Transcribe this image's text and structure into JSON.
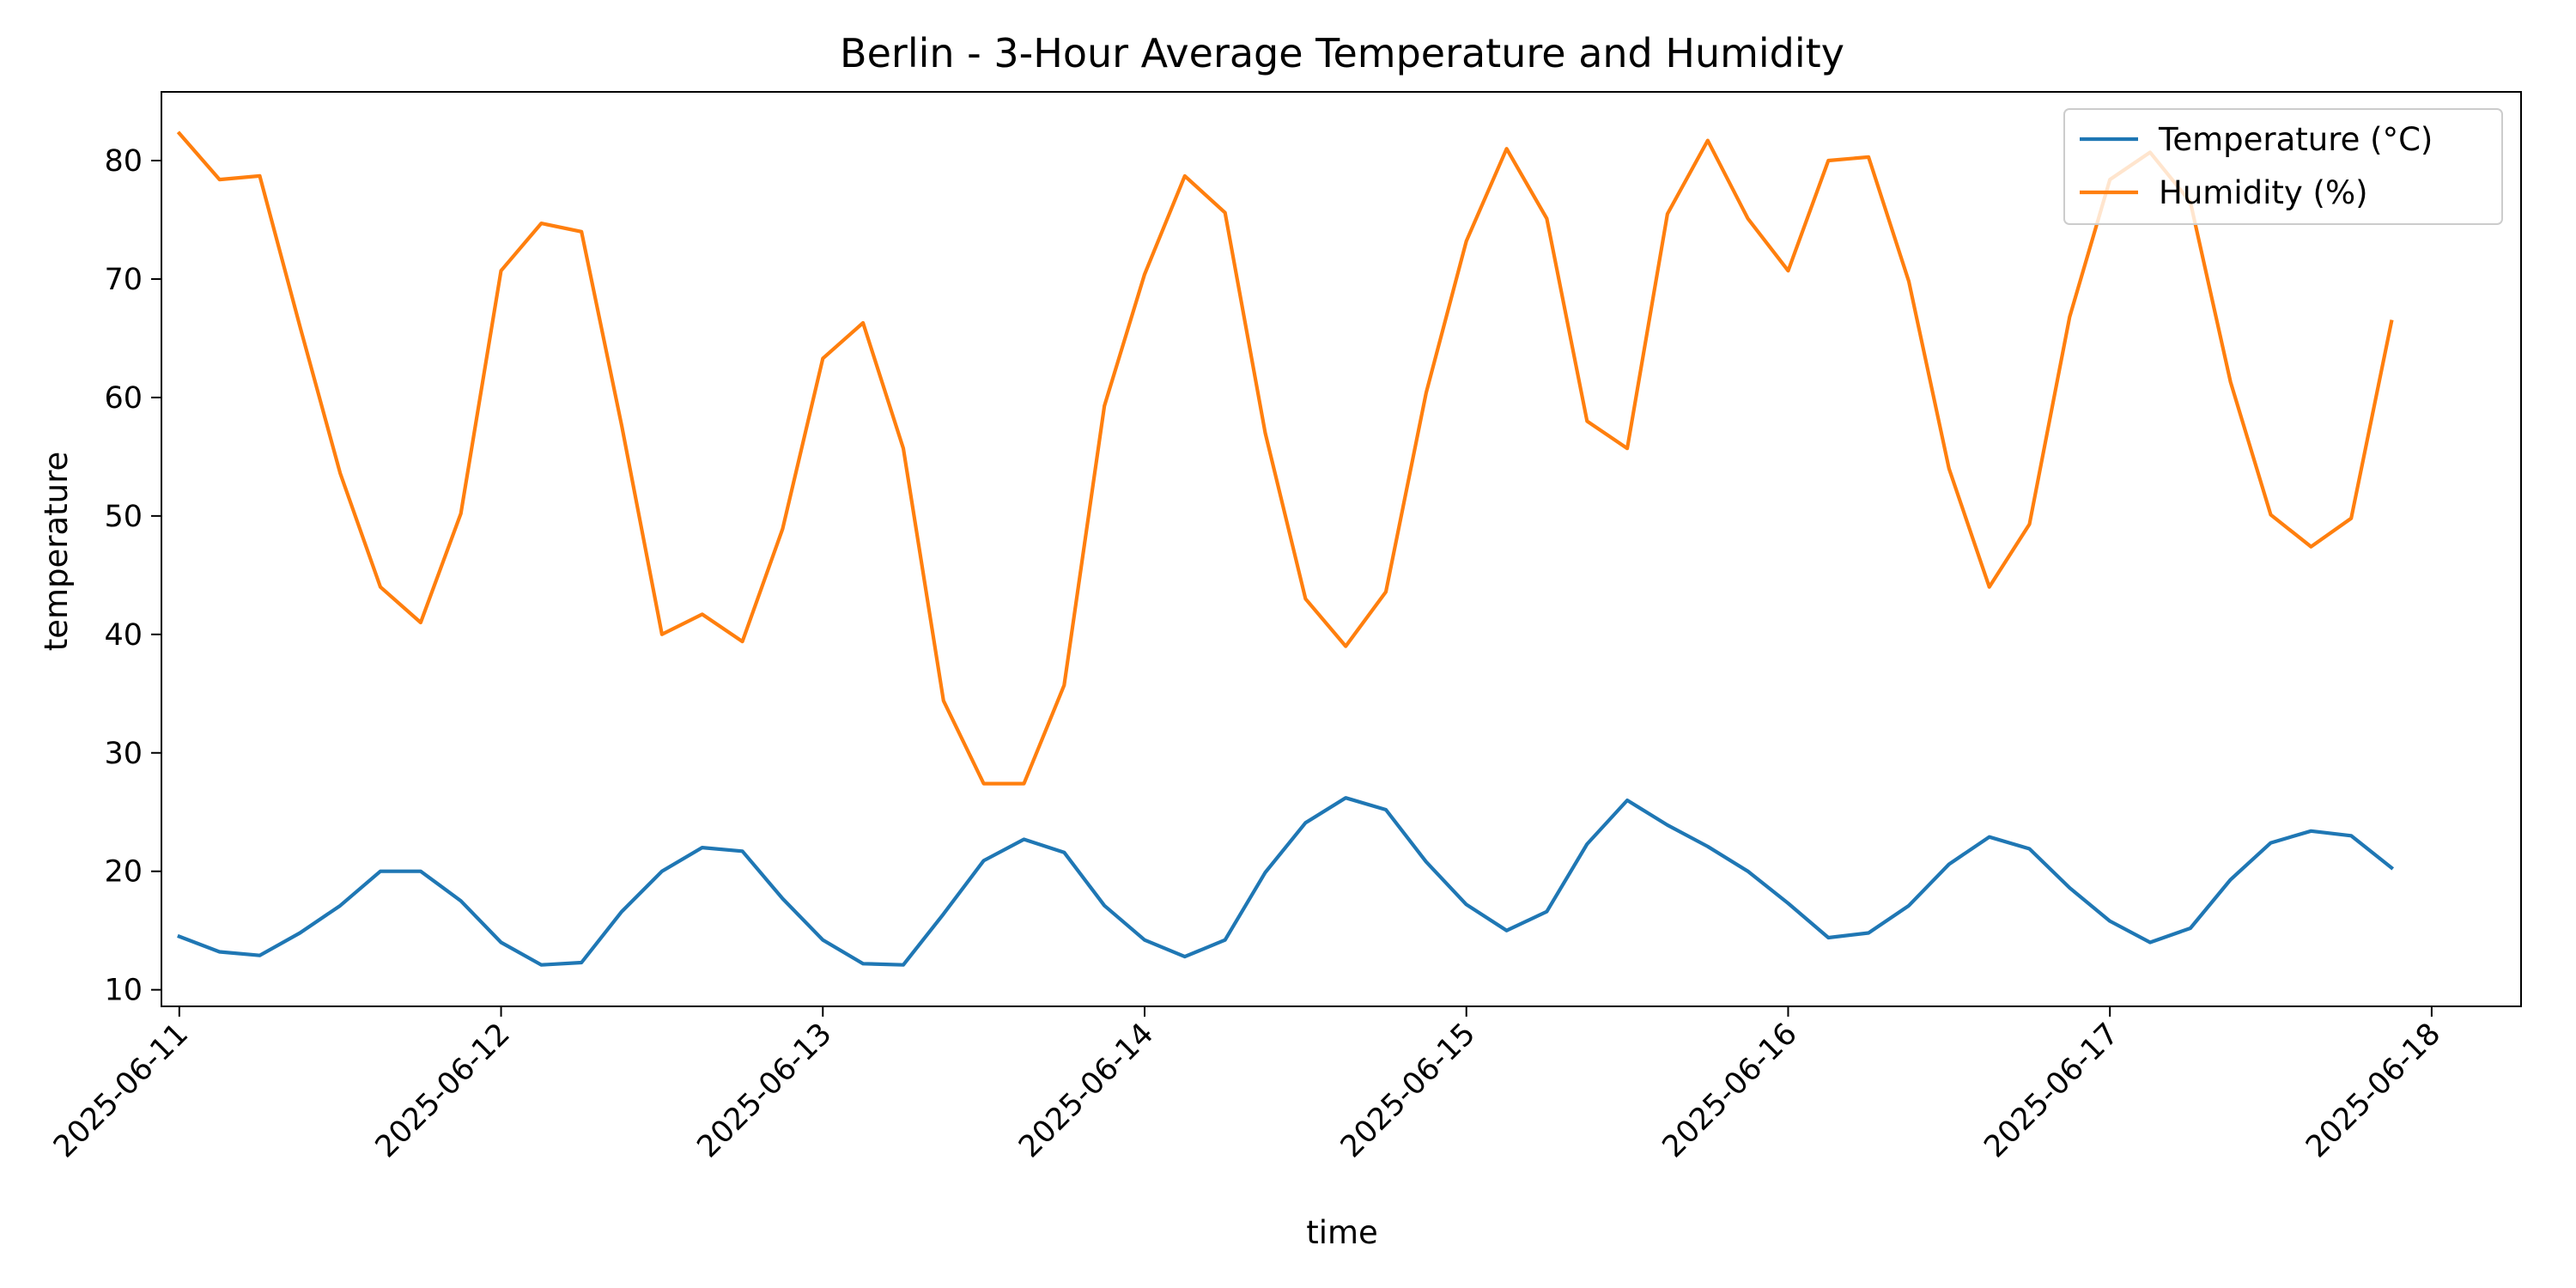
{
  "chart_data": {
    "type": "line",
    "title": "Berlin - 3-Hour Average Temperature and Humidity",
    "xlabel": "time",
    "ylabel": "temperature",
    "x_range": [
      "2025-06-10 22:40",
      "2025-06-18 06:40"
    ],
    "ylim": [
      8.6,
      85.8
    ],
    "yticks": [
      10,
      20,
      30,
      40,
      50,
      60,
      70,
      80
    ],
    "xticks": [
      "2025-06-11",
      "2025-06-12",
      "2025-06-13",
      "2025-06-14",
      "2025-06-15",
      "2025-06-16",
      "2025-06-17",
      "2025-06-18"
    ],
    "grid": false,
    "legend_position": "top-right",
    "x": [
      "2025-06-11 00:00",
      "2025-06-11 03:00",
      "2025-06-11 06:00",
      "2025-06-11 09:00",
      "2025-06-11 12:00",
      "2025-06-11 15:00",
      "2025-06-11 18:00",
      "2025-06-11 21:00",
      "2025-06-12 00:00",
      "2025-06-12 03:00",
      "2025-06-12 06:00",
      "2025-06-12 09:00",
      "2025-06-12 12:00",
      "2025-06-12 15:00",
      "2025-06-12 18:00",
      "2025-06-12 21:00",
      "2025-06-13 00:00",
      "2025-06-13 03:00",
      "2025-06-13 06:00",
      "2025-06-13 09:00",
      "2025-06-13 12:00",
      "2025-06-13 15:00",
      "2025-06-13 18:00",
      "2025-06-13 21:00",
      "2025-06-14 00:00",
      "2025-06-14 03:00",
      "2025-06-14 06:00",
      "2025-06-14 09:00",
      "2025-06-14 12:00",
      "2025-06-14 15:00",
      "2025-06-14 18:00",
      "2025-06-14 21:00",
      "2025-06-15 00:00",
      "2025-06-15 03:00",
      "2025-06-15 06:00",
      "2025-06-15 09:00",
      "2025-06-15 12:00",
      "2025-06-15 15:00",
      "2025-06-15 18:00",
      "2025-06-15 21:00",
      "2025-06-16 00:00",
      "2025-06-16 03:00",
      "2025-06-16 06:00",
      "2025-06-16 09:00",
      "2025-06-16 12:00",
      "2025-06-16 15:00",
      "2025-06-16 18:00",
      "2025-06-16 21:00",
      "2025-06-17 00:00",
      "2025-06-17 03:00",
      "2025-06-17 06:00",
      "2025-06-17 09:00",
      "2025-06-17 12:00",
      "2025-06-17 15:00",
      "2025-06-17 18:00",
      "2025-06-17 21:00"
    ],
    "series": [
      {
        "name": "Temperature (°C)",
        "color": "#1f77b4",
        "values": [
          14.5,
          13.2,
          12.9,
          14.8,
          17.1,
          20.0,
          20.0,
          17.5,
          14.0,
          12.1,
          12.3,
          16.6,
          20.0,
          22.0,
          21.7,
          17.7,
          14.2,
          12.2,
          12.1,
          16.4,
          20.9,
          22.7,
          21.6,
          17.1,
          14.2,
          12.8,
          14.2,
          19.9,
          24.1,
          26.2,
          25.2,
          20.8,
          17.2,
          15.0,
          16.6,
          22.3,
          26.0,
          23.9,
          22.1,
          20.0,
          17.3,
          14.4,
          14.8,
          17.1,
          20.6,
          22.9,
          21.9,
          18.6,
          15.8,
          14.0,
          15.2,
          19.3,
          22.4,
          23.4,
          23.0,
          20.3
        ]
      },
      {
        "name": "Humidity (%)",
        "color": "#ff7f0e",
        "values": [
          82.3,
          78.4,
          78.7,
          66.0,
          53.6,
          44.0,
          41.0,
          50.2,
          70.7,
          74.7,
          74.0,
          57.6,
          40.0,
          41.7,
          39.4,
          48.9,
          63.3,
          66.3,
          55.7,
          34.4,
          27.4,
          27.4,
          35.7,
          59.3,
          70.4,
          78.7,
          75.6,
          57.0,
          43.0,
          39.0,
          43.6,
          60.4,
          73.2,
          81.0,
          75.1,
          58.0,
          55.7,
          75.5,
          81.7,
          75.1,
          70.7,
          80.0,
          80.3,
          69.8,
          54.0,
          44.0,
          49.3,
          66.8,
          78.4,
          80.7,
          76.5,
          61.3,
          50.1,
          47.4,
          49.8,
          66.4
        ]
      }
    ]
  }
}
